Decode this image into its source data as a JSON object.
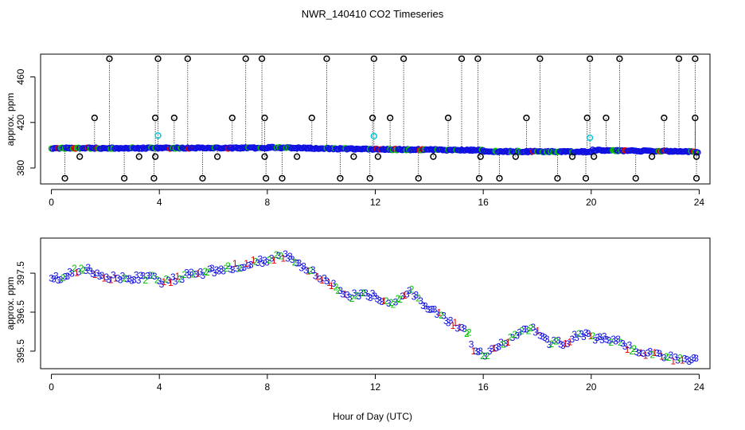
{
  "title": "NWR_140410  CO2 Timeseries",
  "xlabel_shared": "Hour of Day (UTC)",
  "colors": {
    "background": "#ffffff",
    "axis": "#000000",
    "series1": "#e00000",
    "series2": "#00c000",
    "series3": "#1010e0",
    "outlier": "#000000",
    "flag": "#00c8d8"
  },
  "chart_data": [
    {
      "type": "scatter",
      "panel": "top",
      "title": "NWR_140410  CO2 Timeseries",
      "xlabel": "",
      "ylabel": "approx. ppm",
      "xlim": [
        -0.4,
        24.4
      ],
      "ylim": [
        366,
        480
      ],
      "xticks": [
        0,
        4,
        8,
        12,
        16,
        20,
        24
      ],
      "yticks": [
        380,
        420,
        460
      ],
      "baseline": [
        [
          0,
          397.4
        ],
        [
          8,
          397.6
        ],
        [
          8.05,
          398.0
        ],
        [
          12,
          396.4
        ],
        [
          16,
          395.6
        ],
        [
          16.05,
          394.6
        ],
        [
          20,
          394.2
        ],
        [
          20.05,
          395.6
        ],
        [
          24,
          394.2
        ]
      ],
      "outliers_high": [
        2.15,
        3.95,
        5.05,
        7.2,
        7.8,
        10.2,
        11.95,
        13.05,
        15.2,
        15.8,
        18.1,
        19.95,
        21.05,
        23.25,
        23.85
      ],
      "outliers_mid": [
        1.6,
        3.85,
        4.55,
        6.7,
        7.9,
        9.65,
        11.9,
        12.55,
        14.7,
        17.6,
        19.85,
        20.55,
        22.7,
        23.85
      ],
      "outliers_low": [
        0.5,
        2.7,
        3.8,
        5.6,
        7.95,
        8.55,
        10.7,
        11.8,
        13.6,
        15.85,
        16.6,
        18.75,
        19.8,
        21.65,
        23.9
      ],
      "outliers_near": [
        1.05,
        3.25,
        3.85,
        6.15,
        7.9,
        9.1,
        11.2,
        12.1,
        14.15,
        15.9,
        17.2,
        19.3,
        20.1,
        22.25,
        23.9
      ],
      "flags": [
        [
          3.95,
          408.5
        ],
        [
          11.95,
          408.0
        ],
        [
          19.95,
          406.5
        ]
      ],
      "high_value": 476,
      "mid_value": 424,
      "low_value": 371,
      "near_value": 390
    },
    {
      "type": "scatter",
      "panel": "bottom",
      "title": "",
      "xlabel": "Hour of Day (UTC)",
      "ylabel": "approx. ppm",
      "xlim": [
        -0.4,
        24.4
      ],
      "ylim": [
        395.05,
        398.4
      ],
      "xticks": [
        0,
        4,
        8,
        12,
        16,
        20,
        24
      ],
      "yticks": [
        395.5,
        396.5,
        397.5
      ],
      "series_labels": [
        "1",
        "2",
        "3"
      ],
      "trend": [
        [
          0,
          397.45
        ],
        [
          0.3,
          397.35
        ],
        [
          1,
          397.6
        ],
        [
          1.5,
          397.55
        ],
        [
          2,
          397.4
        ],
        [
          2.5,
          397.35
        ],
        [
          3.9,
          397.4
        ],
        [
          4.1,
          397.25
        ],
        [
          5,
          397.45
        ],
        [
          6,
          397.55
        ],
        [
          7,
          397.7
        ],
        [
          8,
          397.82
        ],
        [
          8.6,
          397.95
        ],
        [
          9.5,
          397.6
        ],
        [
          10.5,
          397.2
        ],
        [
          11,
          396.85
        ],
        [
          11.5,
          397.0
        ],
        [
          12,
          396.9
        ],
        [
          12.5,
          396.7
        ],
        [
          13.3,
          397.05
        ],
        [
          13.8,
          396.7
        ],
        [
          14.3,
          396.5
        ],
        [
          15,
          396.15
        ],
        [
          15.5,
          395.9
        ],
        [
          15.6,
          395.5
        ],
        [
          16.1,
          395.4
        ],
        [
          17,
          395.8
        ],
        [
          17.8,
          396.15
        ],
        [
          18.3,
          395.75
        ],
        [
          19,
          395.7
        ],
        [
          19.6,
          395.95
        ],
        [
          20,
          395.85
        ],
        [
          21,
          395.75
        ],
        [
          21.6,
          395.5
        ],
        [
          22.5,
          395.4
        ],
        [
          23.5,
          395.25
        ],
        [
          23.9,
          395.3
        ]
      ]
    }
  ]
}
